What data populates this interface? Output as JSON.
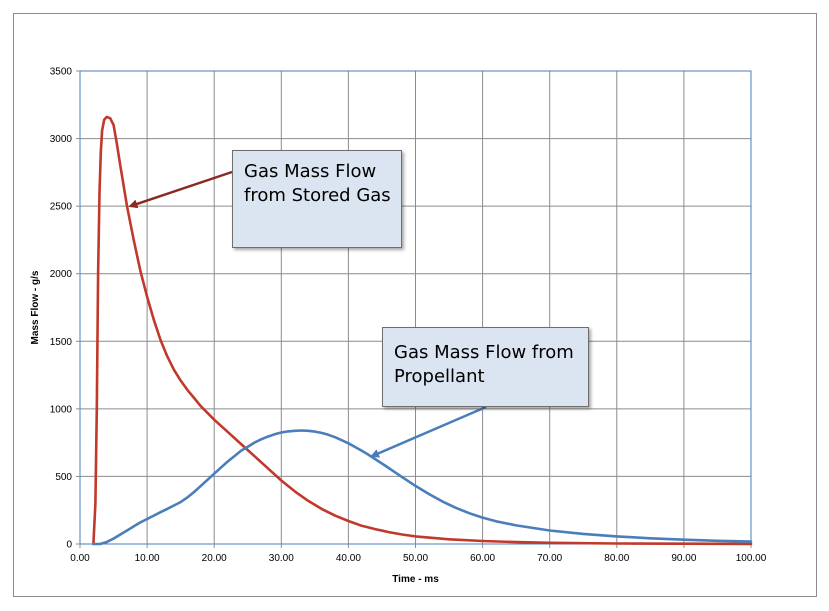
{
  "chart_data": {
    "type": "line",
    "title": "",
    "xlabel": "Time - ms",
    "ylabel": "Mass Flow - g/s",
    "xlim": [
      0,
      100
    ],
    "ylim": [
      0,
      3500
    ],
    "x_ticks": [
      "0.00",
      "10.00",
      "20.00",
      "30.00",
      "40.00",
      "50.00",
      "60.00",
      "70.00",
      "80.00",
      "90.00",
      "100.00"
    ],
    "y_ticks": [
      "0",
      "500",
      "1000",
      "1500",
      "2000",
      "2500",
      "3000",
      "3500"
    ],
    "grid": true,
    "series": [
      {
        "name": "Gas Mass Flow from Stored Gas",
        "color": "#c0392b",
        "points": [
          [
            2.0,
            0
          ],
          [
            2.3,
            300
          ],
          [
            2.5,
            1000
          ],
          [
            2.7,
            2000
          ],
          [
            2.9,
            2600
          ],
          [
            3.1,
            2900
          ],
          [
            3.3,
            3060
          ],
          [
            3.6,
            3140
          ],
          [
            4.0,
            3160
          ],
          [
            4.5,
            3150
          ],
          [
            5.0,
            3100
          ],
          [
            5.5,
            2960
          ],
          [
            6.0,
            2800
          ],
          [
            7.0,
            2500
          ],
          [
            8.0,
            2250
          ],
          [
            9.0,
            2020
          ],
          [
            10.0,
            1830
          ],
          [
            11.0,
            1660
          ],
          [
            12.0,
            1510
          ],
          [
            13.0,
            1390
          ],
          [
            14.0,
            1290
          ],
          [
            15.0,
            1210
          ],
          [
            16.0,
            1140
          ],
          [
            17.0,
            1080
          ],
          [
            18.0,
            1020
          ],
          [
            19.0,
            970
          ],
          [
            20.0,
            920
          ],
          [
            22.0,
            830
          ],
          [
            24.0,
            740
          ],
          [
            26.0,
            650
          ],
          [
            28.0,
            560
          ],
          [
            30.0,
            470
          ],
          [
            32.0,
            390
          ],
          [
            34.0,
            320
          ],
          [
            36.0,
            260
          ],
          [
            38.0,
            210
          ],
          [
            40.0,
            170
          ],
          [
            42.0,
            135
          ],
          [
            44.0,
            110
          ],
          [
            46.0,
            88
          ],
          [
            48.0,
            70
          ],
          [
            50.0,
            56
          ],
          [
            55.0,
            35
          ],
          [
            60.0,
            22
          ],
          [
            65.0,
            14
          ],
          [
            70.0,
            9
          ],
          [
            80.0,
            4
          ],
          [
            90.0,
            2
          ],
          [
            100.0,
            1
          ]
        ]
      },
      {
        "name": "Gas Mass Flow from Propellant",
        "color": "#4a7ebb",
        "points": [
          [
            2.0,
            0
          ],
          [
            3.0,
            0
          ],
          [
            4.0,
            15
          ],
          [
            5.0,
            40
          ],
          [
            6.0,
            70
          ],
          [
            7.0,
            100
          ],
          [
            8.0,
            130
          ],
          [
            9.0,
            160
          ],
          [
            10.0,
            185
          ],
          [
            11.0,
            210
          ],
          [
            12.0,
            235
          ],
          [
            13.0,
            260
          ],
          [
            14.0,
            285
          ],
          [
            15.0,
            310
          ],
          [
            16.0,
            345
          ],
          [
            17.0,
            385
          ],
          [
            18.0,
            430
          ],
          [
            19.0,
            475
          ],
          [
            20.0,
            520
          ],
          [
            21.0,
            565
          ],
          [
            22.0,
            610
          ],
          [
            23.0,
            650
          ],
          [
            24.0,
            690
          ],
          [
            25.0,
            720
          ],
          [
            26.0,
            750
          ],
          [
            27.0,
            775
          ],
          [
            28.0,
            795
          ],
          [
            29.0,
            812
          ],
          [
            30.0,
            825
          ],
          [
            31.0,
            833
          ],
          [
            32.0,
            838
          ],
          [
            33.0,
            840
          ],
          [
            34.0,
            838
          ],
          [
            35.0,
            832
          ],
          [
            36.0,
            822
          ],
          [
            37.0,
            808
          ],
          [
            38.0,
            790
          ],
          [
            39.0,
            768
          ],
          [
            40.0,
            745
          ],
          [
            41.0,
            718
          ],
          [
            42.0,
            690
          ],
          [
            43.0,
            660
          ],
          [
            44.0,
            628
          ],
          [
            45.0,
            596
          ],
          [
            46.0,
            562
          ],
          [
            47.0,
            528
          ],
          [
            48.0,
            495
          ],
          [
            50.0,
            430
          ],
          [
            52.0,
            370
          ],
          [
            54.0,
            315
          ],
          [
            56.0,
            268
          ],
          [
            58.0,
            228
          ],
          [
            60.0,
            195
          ],
          [
            62.0,
            168
          ],
          [
            65.0,
            138
          ],
          [
            70.0,
            100
          ],
          [
            75.0,
            75
          ],
          [
            80.0,
            56
          ],
          [
            85.0,
            42
          ],
          [
            90.0,
            32
          ],
          [
            95.0,
            24
          ],
          [
            100.0,
            18
          ]
        ]
      }
    ],
    "annotations": [
      {
        "lines": [
          "Gas Mass Flow",
          "from Stored Gas"
        ],
        "points_to_series": "Gas Mass Flow from Stored Gas",
        "target": [
          7.5,
          2500
        ]
      },
      {
        "lines": [
          "Gas Mass Flow from",
          "Propellant"
        ],
        "points_to_series": "Gas Mass Flow from Propellant",
        "target": [
          43.5,
          650
        ]
      }
    ]
  }
}
